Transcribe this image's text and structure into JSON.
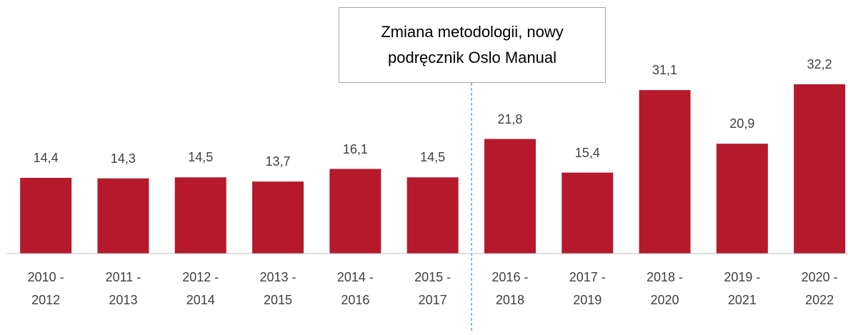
{
  "chart_data": {
    "type": "bar",
    "annotation": "Zmiana metodologii, nowy podręcznik Oslo Manual",
    "categories": [
      "2010 - 2012",
      "2011 - 2013",
      "2012 - 2014",
      "2013 - 2015",
      "2014 - 2016",
      "2015 - 2017",
      "2016 - 2018",
      "2017 - 2019",
      "2018 - 2020",
      "2019 - 2021",
      "2020 - 2022"
    ],
    "values": [
      14.4,
      14.3,
      14.5,
      13.7,
      16.1,
      14.5,
      21.8,
      15.4,
      31.1,
      20.9,
      32.2
    ],
    "value_labels": [
      "14,4",
      "14,3",
      "14,5",
      "13,7",
      "16,1",
      "14,5",
      "21,8",
      "15,4",
      "31,1",
      "20,9",
      "32,2"
    ],
    "color": "#b5192b"
  }
}
